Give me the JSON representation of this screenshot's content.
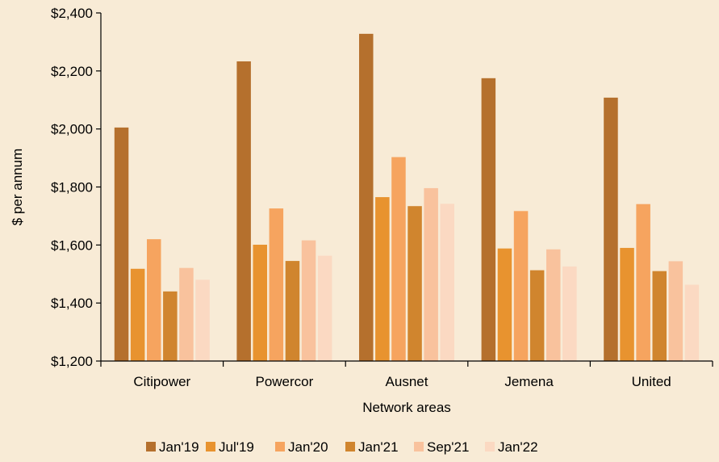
{
  "chart_data": {
    "type": "bar",
    "categories": [
      "Citipower",
      "Powercor",
      "Ausnet",
      "Jemena",
      "United"
    ],
    "series": [
      {
        "name": "Jan'19",
        "color": "#b5702d",
        "values": [
          2005,
          2233,
          2328,
          2175,
          2108
        ]
      },
      {
        "name": "Jul'19",
        "color": "#e8932f",
        "values": [
          1518,
          1601,
          1765,
          1588,
          1590
        ]
      },
      {
        "name": "Jan'20",
        "color": "#f6a45f",
        "values": [
          1620,
          1726,
          1903,
          1717,
          1741
        ]
      },
      {
        "name": "Jan'21",
        "color": "#d0852e",
        "values": [
          1440,
          1545,
          1734,
          1513,
          1510
        ]
      },
      {
        "name": "Sep'21",
        "color": "#f9c29d",
        "values": [
          1521,
          1616,
          1796,
          1585,
          1544
        ]
      },
      {
        "name": "Jan'22",
        "color": "#fbd9c2",
        "values": [
          1480,
          1563,
          1742,
          1526,
          1463
        ]
      }
    ],
    "xlabel": "Network areas",
    "ylabel": "$ per annum",
    "ylim": [
      1200,
      2400
    ],
    "yticks": [
      1200,
      1400,
      1600,
      1800,
      2000,
      2200,
      2400
    ],
    "ytick_labels": [
      "$1,200",
      "$1,400",
      "$1,600",
      "$1,800",
      "$2,000",
      "$2,200",
      "$2,400"
    ],
    "legend_position": "bottom",
    "grid": false,
    "background": "#f8ebd6"
  }
}
